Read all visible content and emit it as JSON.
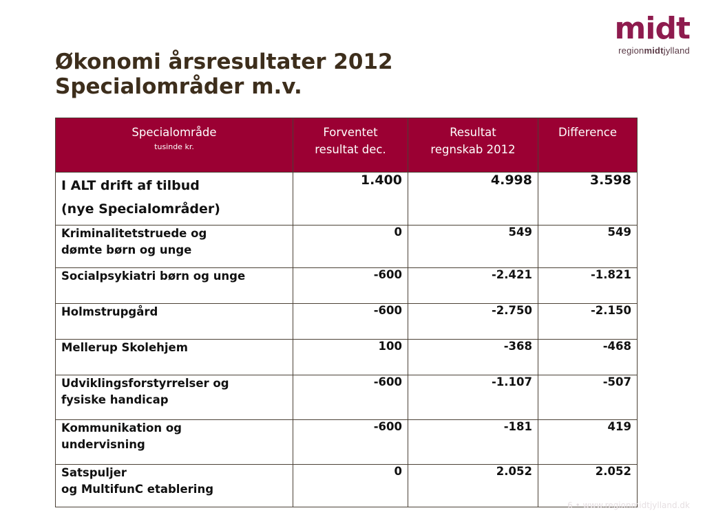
{
  "logo": {
    "mark": "midt",
    "sub_prefix": "region",
    "sub_bold": "midt",
    "sub_suffix": "jylland"
  },
  "title": {
    "line1": "Økonomi årsresultater 2012",
    "line2": "Specialområder m.v."
  },
  "table": {
    "headers": {
      "col1": "Specialområde",
      "col1_sub": "tusinde kr.",
      "col2_line1": "Forventet",
      "col2_line2": "resultat dec.",
      "col3_line1": "Resultat",
      "col3_line2": "regnskab 2012",
      "col4": "Difference"
    },
    "rows": [
      {
        "label_line1": "I ALT drift af tilbud",
        "label_line2": "(nye Specialområder)",
        "forventet": "1.400",
        "resultat": "4.998",
        "difference": "3.598"
      },
      {
        "label_line1": "Kriminalitetstruede og",
        "label_line2": "dømte børn og unge",
        "forventet": "0",
        "resultat": "549",
        "difference": "549"
      },
      {
        "label_line1": "Socialpsykiatri børn og unge",
        "label_line2": "",
        "forventet": "-600",
        "resultat": "-2.421",
        "difference": "-1.821"
      },
      {
        "label_line1": "Holmstrupgård",
        "label_line2": "",
        "forventet": "-600",
        "resultat": "-2.750",
        "difference": "-2.150"
      },
      {
        "label_line1": "Mellerup Skolehjem",
        "label_line2": "",
        "forventet": "100",
        "resultat": "-368",
        "difference": "-468"
      },
      {
        "label_line1": "Udviklingsforstyrrelser og",
        "label_line2": "fysiske handicap",
        "forventet": "-600",
        "resultat": "-1.107",
        "difference": "-507"
      },
      {
        "label_line1": "Kommunikation og",
        "label_line2": "undervisning",
        "forventet": "-600",
        "resultat": "-181",
        "difference": "419"
      },
      {
        "label_line1": "Satspuljer",
        "label_line2": "og MultifunC etablering",
        "forventet": "0",
        "resultat": "2.052",
        "difference": "2.052"
      }
    ]
  },
  "footer": {
    "page_number": "6",
    "separator": "•",
    "url": "www.regionmidtjylland.dk"
  },
  "colors": {
    "header_bg": "#9b0033",
    "negative": "#e2005a",
    "title": "#3d2e1c",
    "logo": "#8e1b4e"
  }
}
